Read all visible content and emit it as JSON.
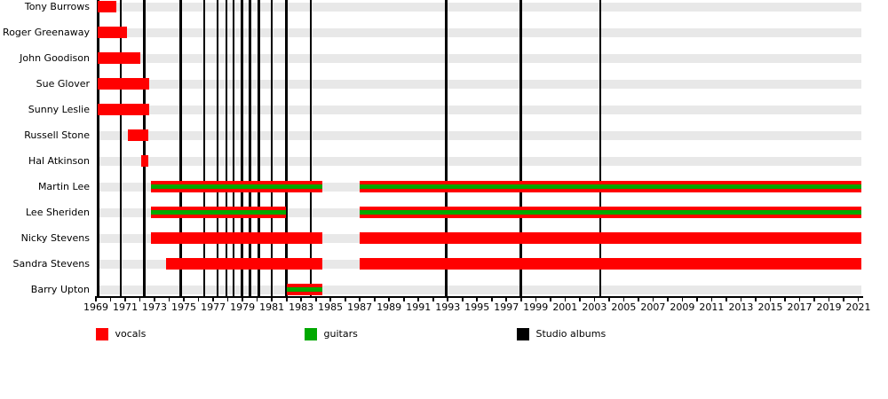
{
  "chart_data": {
    "type": "timeline",
    "x_axis": {
      "start": 1969,
      "end": 2021,
      "tick_interval": 1,
      "label_interval": 2,
      "tick_labels": [
        "1969",
        "1971",
        "1973",
        "1975",
        "1977",
        "1979",
        "1981",
        "1983",
        "1985",
        "1987",
        "1989",
        "1991",
        "1993",
        "1995",
        "1997",
        "1999",
        "2001",
        "2003",
        "2005",
        "2007",
        "2009",
        "2011",
        "2013",
        "2015",
        "2017",
        "2019",
        "2021"
      ]
    },
    "members": [
      {
        "name": "Tony Burrows",
        "roles": [
          "vocals"
        ],
        "segments": [
          [
            1969,
            1970.4
          ]
        ]
      },
      {
        "name": "Roger Greenaway",
        "roles": [
          "vocals"
        ],
        "segments": [
          [
            1969,
            1971.1
          ]
        ]
      },
      {
        "name": "John Goodison",
        "roles": [
          "vocals"
        ],
        "segments": [
          [
            1969,
            1972.0
          ]
        ]
      },
      {
        "name": "Sue Glover",
        "roles": [
          "vocals"
        ],
        "segments": [
          [
            1969,
            1972.65
          ]
        ]
      },
      {
        "name": "Sunny Leslie",
        "roles": [
          "vocals"
        ],
        "segments": [
          [
            1969,
            1972.65
          ]
        ]
      },
      {
        "name": "Russell Stone",
        "roles": [
          "vocals"
        ],
        "segments": [
          [
            1971.2,
            1972.55
          ]
        ]
      },
      {
        "name": "Hal Atkinson",
        "roles": [
          "vocals"
        ],
        "segments": [
          [
            1972.1,
            1972.6
          ]
        ]
      },
      {
        "name": "Martin Lee",
        "roles": [
          "vocals",
          "guitars"
        ],
        "segments": [
          [
            1972.75,
            1984.45
          ],
          [
            1987.0,
            2021.3
          ]
        ]
      },
      {
        "name": "Lee Sheriden",
        "roles": [
          "vocals",
          "guitars"
        ],
        "segments": [
          [
            1972.75,
            1981.95
          ],
          [
            1987.0,
            2021.3
          ]
        ]
      },
      {
        "name": "Nicky Stevens",
        "roles": [
          "vocals"
        ],
        "segments": [
          [
            1972.75,
            1984.45
          ],
          [
            1987.0,
            2021.3
          ]
        ]
      },
      {
        "name": "Sandra Stevens",
        "roles": [
          "vocals"
        ],
        "segments": [
          [
            1973.8,
            1984.45
          ],
          [
            1987.0,
            2021.3
          ]
        ]
      },
      {
        "name": "Barry Upton",
        "roles": [
          "vocals",
          "guitars"
        ],
        "segments": [
          [
            1982.0,
            1984.45
          ]
        ]
      }
    ],
    "album_markers": [
      1970.7,
      1972.3,
      1974.8,
      1976.4,
      1977.3,
      1977.9,
      1978.4,
      1978.95,
      1979.5,
      1980.1,
      1981.0,
      1982.0,
      1983.65,
      1992.9,
      1998.0,
      2003.4
    ],
    "legend": [
      {
        "label": "vocals",
        "color": "#ff0000"
      },
      {
        "label": "guitars",
        "color": "#00a800"
      },
      {
        "label": "Studio albums",
        "color": "#000000"
      }
    ],
    "colors": {
      "vocals": "#ff0000",
      "guitars": "#00a800",
      "album_line": "#000000",
      "row_band": "#e8e8e8"
    }
  }
}
